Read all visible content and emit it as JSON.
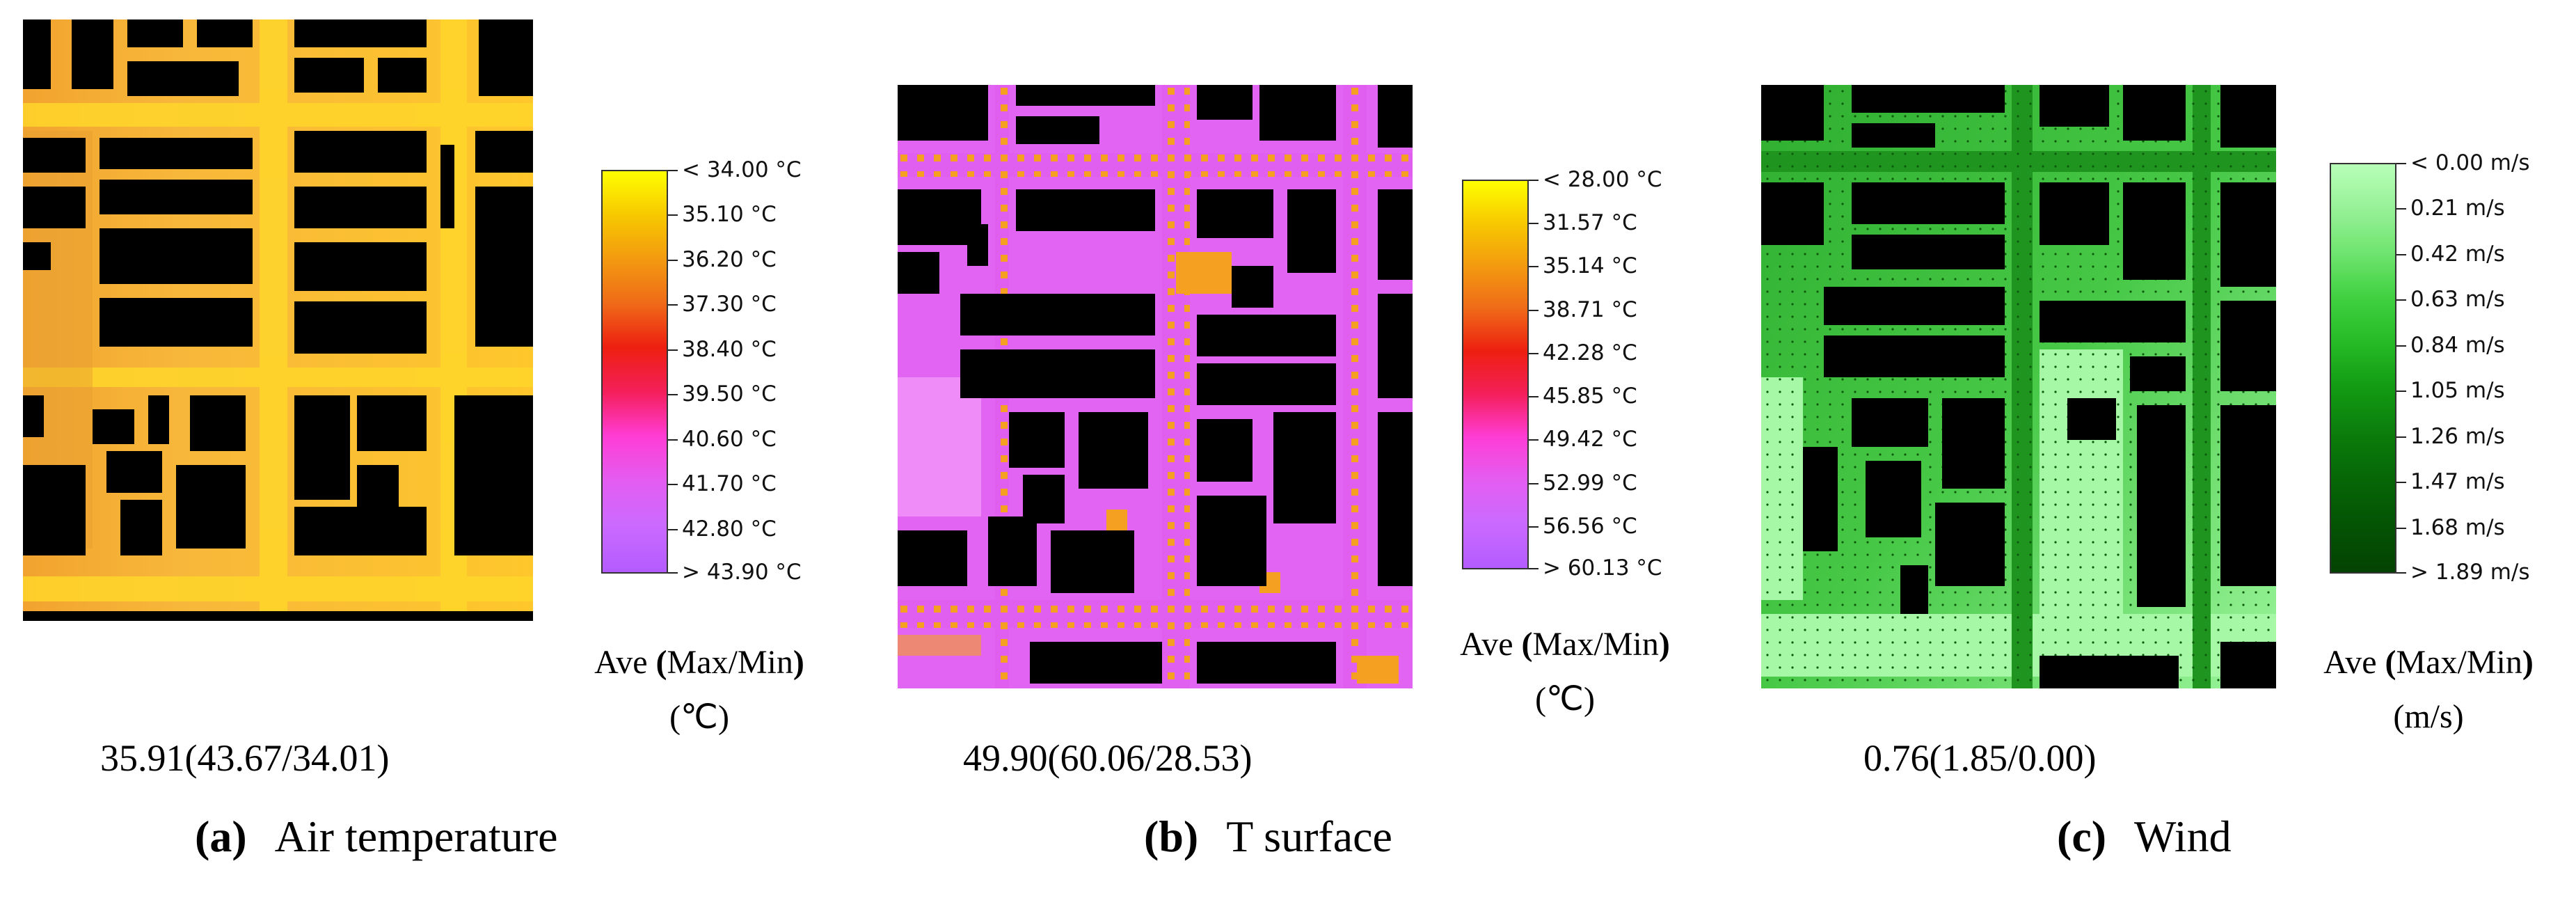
{
  "panels": [
    {
      "id": "a",
      "letter": "(a)",
      "title": "Air temperature",
      "stats": "35.91(43.67/34.01)",
      "ave_title_pre": "Ave ",
      "ave_title_paren_open": "(",
      "ave_title_mid": "Max/Min",
      "ave_title_paren_close": ")",
      "unit": "(℃)",
      "legend_labels": [
        "< 34.00 °C",
        "35.10  °C",
        "36.20  °C",
        "37.30  °C",
        "38.40  °C",
        "39.50  °C",
        "40.60  °C",
        "41.70  °C",
        "42.80  °C",
        "> 43.90 °C"
      ],
      "colors": {
        "background": "#f6b93a",
        "building": "#000000",
        "street": "#ffd52a"
      }
    },
    {
      "id": "b",
      "letter": "(b)",
      "title": "T surface",
      "stats": "49.90(60.06/28.53)",
      "ave_title_pre": "Ave ",
      "ave_title_paren_open": "(",
      "ave_title_mid": "Max/Min",
      "ave_title_paren_close": ")",
      "unit": "(℃)",
      "legend_labels": [
        "< 28.00 °C",
        "31.57  °C",
        "35.14  °C",
        "38.71  °C",
        "42.28  °C",
        "45.85  °C",
        "49.42  °C",
        "52.99  °C",
        "56.56  °C",
        "> 60.13 °C"
      ],
      "colors": {
        "background": "#e05ef0",
        "building": "#000000",
        "street": "#f5a020"
      }
    },
    {
      "id": "c",
      "letter": "(c)",
      "title": "Wind",
      "stats": "0.76(1.85/0.00)",
      "ave_title_pre": "Ave ",
      "ave_title_paren_open": "(",
      "ave_title_mid": "Max/Min",
      "ave_title_paren_close": ")",
      "unit": "(m/s)",
      "legend_labels": [
        "< 0.00 m/s",
        "0.21  m/s",
        "0.42  m/s",
        "0.63  m/s",
        "0.84  m/s",
        "1.05  m/s",
        "1.26  m/s",
        "1.47  m/s",
        "1.68  m/s",
        "> 1.89 m/s"
      ],
      "colors": {
        "background": "#2fbf2f",
        "building": "#000000",
        "street": "#8ff08f"
      }
    }
  ],
  "legend_gradients": {
    "temperature": [
      "#ffff00",
      "#f7c800",
      "#f39a10",
      "#ef6a18",
      "#ee2a10",
      "#f4205a",
      "#ff3cd4",
      "#e45cf0",
      "#cc6aff",
      "#b560ff"
    ],
    "wind": [
      "#b7ffb7",
      "#97f197",
      "#6ee46e",
      "#3fd03f",
      "#25ba25",
      "#129a12",
      "#0b7d0b",
      "#066706",
      "#045404",
      "#034203"
    ]
  }
}
